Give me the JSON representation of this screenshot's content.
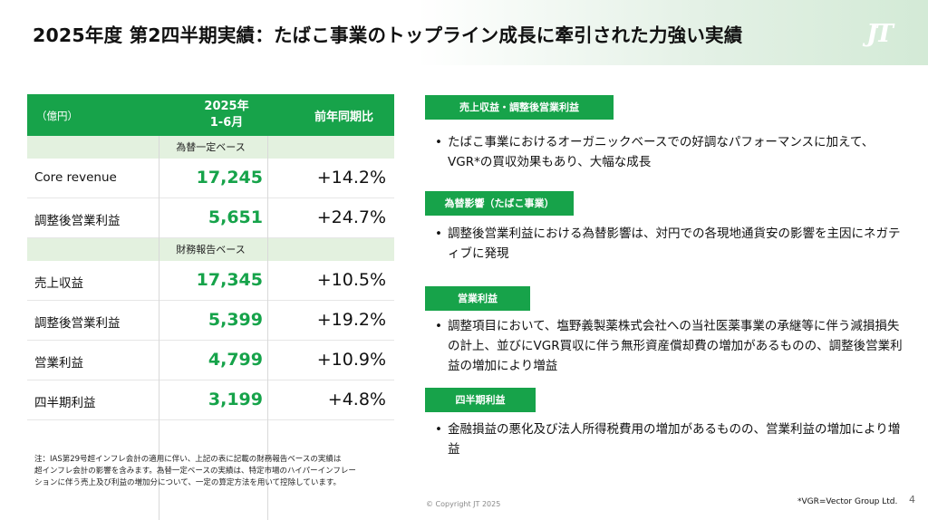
{
  "header": {
    "title": "2025年度 第2四半期実績：たばこ事業のトップライン成長に牽引された力強い実績",
    "logo": "JT"
  },
  "table": {
    "unit": "（億円）",
    "period_line1": "2025年",
    "period_line2": "1-6月",
    "yoy_header": "前年同期比",
    "section1": "為替一定ベース",
    "section2": "財務報告ベース",
    "rows1": [
      {
        "label": "Core revenue",
        "value": "17,245",
        "change": "+14.2%"
      },
      {
        "label": "調整後営業利益",
        "value": "5,651",
        "change": "+24.7%"
      }
    ],
    "rows2": [
      {
        "label": "売上収益",
        "value": "17,345",
        "change": "+10.5%"
      },
      {
        "label": "調整後営業利益",
        "value": "5,399",
        "change": "+19.2%"
      },
      {
        "label": "営業利益",
        "value": "4,799",
        "change": "+10.9%"
      },
      {
        "label": "四半期利益",
        "value": "3,199",
        "change": "+4.8%"
      }
    ]
  },
  "note": {
    "line1": "注：IAS第29号超インフレ会計の適用に伴い、上記の表に記載の財務報告ベースの実績は",
    "line2": "超インフレ会計の影響を含みます。為替一定ベースの実績は、特定市場のハイパーインフレー",
    "line3": "ションに伴う売上及び利益の増加分について、一定の算定方法を用いて控除しています。"
  },
  "panels": [
    {
      "tag": "売上収益・調整後営業利益",
      "bullet": "たばこ事業におけるオーガニックベースでの好調なパフォーマンスに加えて、VGR*の買収効果もあり、大幅な成長"
    },
    {
      "tag": "為替影響（たばこ事業）",
      "bullet": "調整後営業利益における為替影響は、対円での各現地通貨安の影響を主因にネガティブに発現"
    },
    {
      "tag": "営業利益",
      "bullet": "調整項目において、塩野義製薬株式会社への当社医薬事業の承継等に伴う減損損失の計上、並びにVGR買収に伴う無形資産償却費の増加があるものの、調整後営業利益の増加により増益"
    },
    {
      "tag": "四半期利益",
      "bullet": "金融損益の悪化及び法人所得税費用の増加があるものの、営業利益の増加により増益"
    }
  ],
  "footer": {
    "copyright": "© Copyright JT 2025",
    "vgr_note": "*VGR=Vector Group Ltd.",
    "page": "4"
  }
}
